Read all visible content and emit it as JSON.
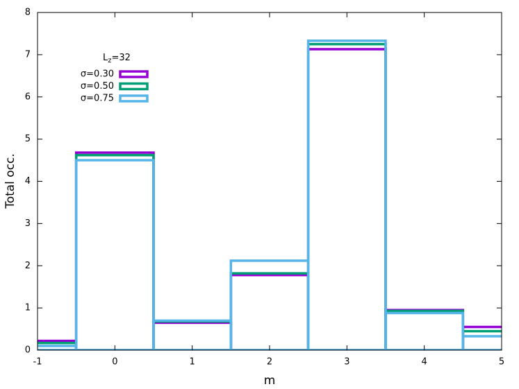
{
  "chart_data": {
    "type": "bar",
    "x_label": "m",
    "y_label": "Total occ.",
    "legend_title": {
      "main": "L",
      "subscript": "z",
      "suffix": "=32"
    },
    "legend_position": "upper-left",
    "x": [
      -1,
      0,
      1,
      2,
      3,
      4,
      5
    ],
    "series": [
      {
        "name": "σ=0.30",
        "color": "#9400d3",
        "values": [
          0.22,
          4.68,
          0.65,
          1.78,
          7.13,
          0.95,
          0.55
        ]
      },
      {
        "name": "σ=0.50",
        "color": "#009e73",
        "values": [
          0.17,
          4.62,
          0.68,
          1.82,
          7.25,
          0.93,
          0.45
        ]
      },
      {
        "name": "σ=0.75",
        "color": "#56b4e9",
        "values": [
          0.1,
          4.5,
          0.7,
          2.12,
          7.33,
          0.88,
          0.33
        ]
      }
    ],
    "xlim": [
      -1,
      5
    ],
    "xticks": [
      -1,
      0,
      1,
      2,
      3,
      4,
      5
    ],
    "ylim": [
      0,
      8
    ],
    "yticks": [
      0,
      1,
      2,
      3,
      4,
      5,
      6,
      7,
      8
    ],
    "grid": false
  }
}
